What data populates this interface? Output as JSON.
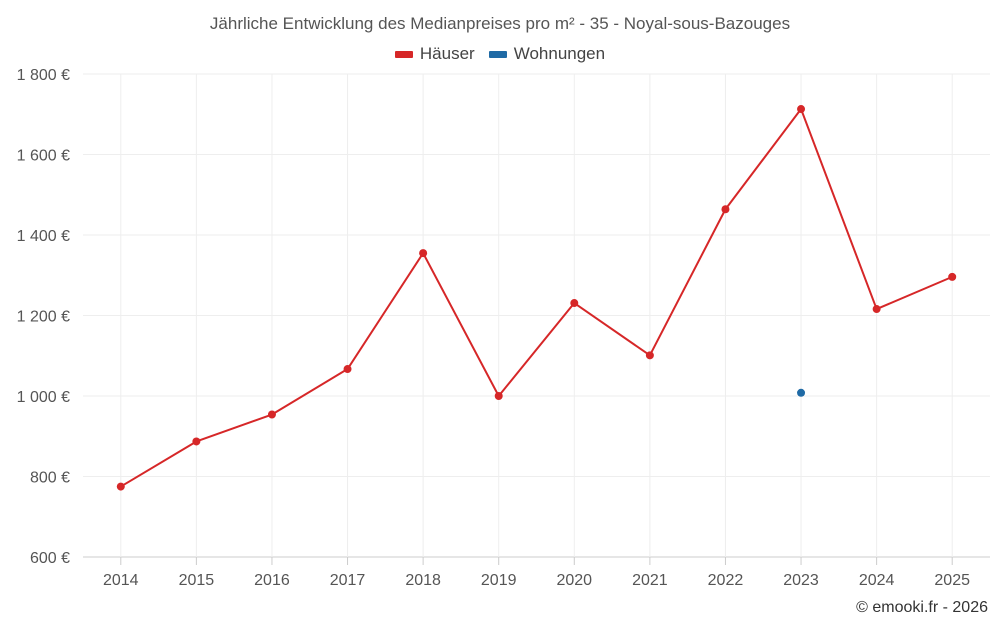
{
  "chart_data": {
    "type": "line",
    "title": "Jährliche Entwicklung des Medianpreises pro m² - 35 - Noyal-sous-Bazouges",
    "x": [
      "2014",
      "2015",
      "2016",
      "2017",
      "2018",
      "2019",
      "2020",
      "2021",
      "2022",
      "2023",
      "2024",
      "2025"
    ],
    "series": [
      {
        "name": "Häuser",
        "color": "#d62728",
        "values": [
          775,
          887,
          954,
          1067,
          1355,
          1000,
          1231,
          1101,
          1464,
          1713,
          1216,
          1296
        ]
      },
      {
        "name": "Wohnungen",
        "color": "#1f6aa5",
        "values": [
          null,
          null,
          null,
          null,
          null,
          null,
          null,
          null,
          null,
          1008,
          null,
          null
        ]
      }
    ],
    "y_ticks": [
      "600 €",
      "800 €",
      "1 000 €",
      "1 200 €",
      "1 400 €",
      "1 600 €",
      "1 800 €"
    ],
    "ylim": [
      600,
      1800
    ],
    "grid": true,
    "legend_position": "top-center"
  },
  "credit": "© emooki.fr - 2026"
}
